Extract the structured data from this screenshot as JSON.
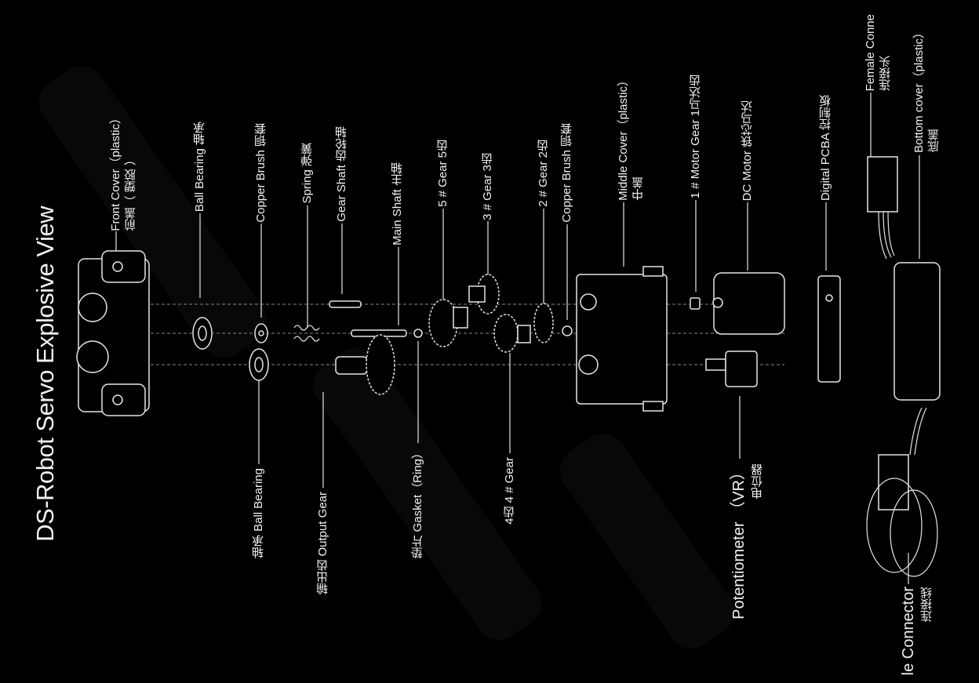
{
  "title": "DS-Robot Servo Explosive View",
  "top_labels": [
    {
      "en": "Front Cover（plastic）",
      "cn": "前盖（ 塑胶 ）"
    },
    {
      "en": "Ball Bearing  轴承",
      "cn": ""
    },
    {
      "en": "Copper Brush  铜套",
      "cn": ""
    },
    {
      "en": "Spring  弹簧",
      "cn": ""
    },
    {
      "en": "Gear Shaft  齿轮轴",
      "cn": ""
    },
    {
      "en": "Main Shaft  主轴",
      "cn": ""
    },
    {
      "en": "5 # Gear  5齿",
      "cn": ""
    },
    {
      "en": "3 # Gear  3齿",
      "cn": ""
    },
    {
      "en": "2 # Gear  2齿",
      "cn": ""
    },
    {
      "en": "Copper Brush  铜套",
      "cn": ""
    },
    {
      "en": "Middle Cover（plastic）",
      "cn": "中盖"
    },
    {
      "en": "1 # Motor Gear  1马达齿",
      "cn": ""
    },
    {
      "en": "DC Motor   铁芯马达",
      "cn": ""
    },
    {
      "en": "Digital PCBA  控制板",
      "cn": ""
    },
    {
      "en": "Female Conne",
      "cn": "连接头"
    },
    {
      "en": "Bottom cover（plastic）",
      "cn": "底盖"
    }
  ],
  "bottom_labels": [
    {
      "en": "轴承 Ball Bearing",
      "cn": ""
    },
    {
      "en": "输出齿 Output Gear",
      "cn": ""
    },
    {
      "en": "垫片 Gasket（Ring）",
      "cn": ""
    },
    {
      "en": "4齿  4 # Gear",
      "cn": ""
    },
    {
      "en": "Potentiometer （VR）",
      "cn": "电位器"
    },
    {
      "en": "le Connector",
      "cn": "连接线"
    }
  ]
}
